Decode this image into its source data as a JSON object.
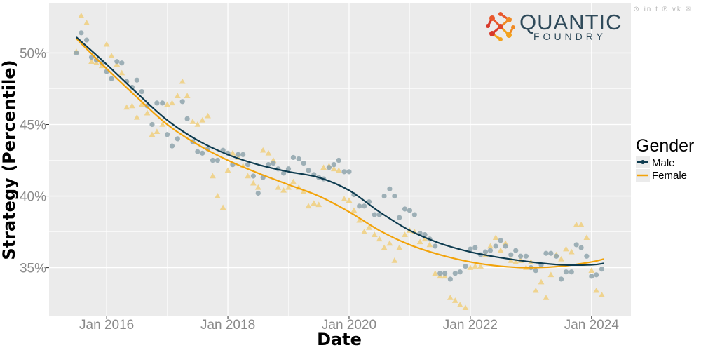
{
  "share_icons": "f 𝕏 ⊙ in t ℗ vk ✉",
  "brand": {
    "name": "QUANTIC",
    "sub": "FOUNDRY"
  },
  "colors": {
    "male": "#0d3b4f",
    "female": "#f2a30a",
    "male_points": "#8fa4ad",
    "female_points": "#f0cf7e",
    "panel": "#ebebeb",
    "grid": "#ffffff"
  },
  "chart_data": {
    "type": "scatter",
    "title": "",
    "xlabel": "Date",
    "ylabel": "Strategy (Percentile)",
    "xlim": [
      2015.05,
      2024.65
    ],
    "ylim": [
      31.6,
      53.5
    ],
    "x_ticks": [
      {
        "value": 2016,
        "label": "Jan 2016"
      },
      {
        "value": 2018,
        "label": "Jan 2018"
      },
      {
        "value": 2020,
        "label": "Jan 2020"
      },
      {
        "value": 2022,
        "label": "Jan 2022"
      },
      {
        "value": 2024,
        "label": "Jan 2024"
      }
    ],
    "y_ticks": [
      {
        "value": 35,
        "label": "35%"
      },
      {
        "value": 40,
        "label": "40%"
      },
      {
        "value": 45,
        "label": "45%"
      },
      {
        "value": 50,
        "label": "50%"
      }
    ],
    "legend": {
      "title": "Gender",
      "position": "right"
    },
    "series": [
      {
        "name": "Male",
        "marker": "circle",
        "points": [
          [
            2015.5,
            50.0
          ],
          [
            2015.58,
            51.4
          ],
          [
            2015.67,
            50.9
          ],
          [
            2015.75,
            49.7
          ],
          [
            2015.83,
            49.5
          ],
          [
            2015.92,
            49.3
          ],
          [
            2016.0,
            48.7
          ],
          [
            2016.08,
            48.2
          ],
          [
            2016.17,
            49.4
          ],
          [
            2016.25,
            49.3
          ],
          [
            2016.33,
            48.0
          ],
          [
            2016.42,
            47.6
          ],
          [
            2016.5,
            48.1
          ],
          [
            2016.58,
            47.3
          ],
          [
            2016.67,
            46.3
          ],
          [
            2016.75,
            45.0
          ],
          [
            2016.83,
            46.5
          ],
          [
            2016.92,
            46.5
          ],
          [
            2017.0,
            44.3
          ],
          [
            2017.08,
            43.5
          ],
          [
            2017.17,
            44.0
          ],
          [
            2017.25,
            46.6
          ],
          [
            2017.33,
            45.4
          ],
          [
            2017.42,
            43.8
          ],
          [
            2017.5,
            43.1
          ],
          [
            2017.58,
            43.0
          ],
          [
            2017.67,
            43.3
          ],
          [
            2017.75,
            42.5
          ],
          [
            2017.83,
            42.5
          ],
          [
            2017.92,
            43.2
          ],
          [
            2018.0,
            43.0
          ],
          [
            2018.08,
            42.2
          ],
          [
            2018.17,
            42.9
          ],
          [
            2018.25,
            42.9
          ],
          [
            2018.33,
            42.2
          ],
          [
            2018.42,
            41.4
          ],
          [
            2018.5,
            40.2
          ],
          [
            2018.58,
            41.3
          ],
          [
            2018.67,
            42.2
          ],
          [
            2018.75,
            42.3
          ],
          [
            2018.83,
            41.9
          ],
          [
            2018.92,
            41.6
          ],
          [
            2019.0,
            41.9
          ],
          [
            2019.08,
            42.7
          ],
          [
            2019.17,
            42.6
          ],
          [
            2019.25,
            42.3
          ],
          [
            2019.33,
            41.8
          ],
          [
            2019.42,
            41.5
          ],
          [
            2019.5,
            41.3
          ],
          [
            2019.58,
            41.2
          ],
          [
            2019.67,
            42.0
          ],
          [
            2019.75,
            42.2
          ],
          [
            2019.83,
            42.5
          ],
          [
            2019.92,
            41.7
          ],
          [
            2020.0,
            41.7
          ],
          [
            2020.08,
            40.1
          ],
          [
            2020.17,
            39.3
          ],
          [
            2020.25,
            39.3
          ],
          [
            2020.33,
            39.6
          ],
          [
            2020.42,
            38.7
          ],
          [
            2020.5,
            38.7
          ],
          [
            2020.58,
            40.0
          ],
          [
            2020.67,
            40.5
          ],
          [
            2020.75,
            40.0
          ],
          [
            2020.83,
            38.5
          ],
          [
            2020.92,
            39.1
          ],
          [
            2021.0,
            39.0
          ],
          [
            2021.08,
            38.7
          ],
          [
            2021.17,
            37.4
          ],
          [
            2021.25,
            37.3
          ],
          [
            2021.33,
            37.0
          ],
          [
            2021.42,
            36.5
          ],
          [
            2021.5,
            34.6
          ],
          [
            2021.58,
            34.6
          ],
          [
            2021.67,
            34.2
          ],
          [
            2021.75,
            34.6
          ],
          [
            2021.83,
            34.7
          ],
          [
            2021.92,
            35.1
          ],
          [
            2022.0,
            36.3
          ],
          [
            2022.08,
            36.4
          ],
          [
            2022.17,
            35.9
          ],
          [
            2022.25,
            36.1
          ],
          [
            2022.33,
            36.2
          ],
          [
            2022.42,
            36.5
          ],
          [
            2022.5,
            36.9
          ],
          [
            2022.58,
            36.5
          ],
          [
            2022.67,
            35.9
          ],
          [
            2022.75,
            36.2
          ],
          [
            2022.83,
            35.8
          ],
          [
            2022.92,
            35.8
          ],
          [
            2023.0,
            35.0
          ],
          [
            2023.08,
            34.8
          ],
          [
            2023.17,
            35.2
          ],
          [
            2023.25,
            36.0
          ],
          [
            2023.33,
            36.0
          ],
          [
            2023.42,
            35.8
          ],
          [
            2023.5,
            34.2
          ],
          [
            2023.58,
            34.7
          ],
          [
            2023.67,
            34.7
          ],
          [
            2023.75,
            36.6
          ],
          [
            2023.83,
            36.4
          ],
          [
            2023.92,
            35.8
          ],
          [
            2024.0,
            34.4
          ],
          [
            2024.08,
            34.5
          ],
          [
            2024.17,
            34.9
          ]
        ],
        "trend": [
          [
            2015.5,
            51.1
          ],
          [
            2016.0,
            49.2
          ],
          [
            2016.5,
            47.2
          ],
          [
            2017.0,
            45.3
          ],
          [
            2017.5,
            43.9
          ],
          [
            2018.0,
            42.9
          ],
          [
            2018.5,
            42.2
          ],
          [
            2019.0,
            41.7
          ],
          [
            2019.5,
            41.3
          ],
          [
            2020.0,
            40.4
          ],
          [
            2020.5,
            38.9
          ],
          [
            2021.0,
            37.6
          ],
          [
            2021.5,
            36.7
          ],
          [
            2022.0,
            36.1
          ],
          [
            2022.5,
            35.7
          ],
          [
            2023.0,
            35.4
          ],
          [
            2023.5,
            35.2
          ],
          [
            2024.0,
            35.2
          ],
          [
            2024.2,
            35.3
          ]
        ]
      },
      {
        "name": "Female",
        "marker": "triangle",
        "points": [
          [
            2015.5,
            50.1
          ],
          [
            2015.58,
            52.6
          ],
          [
            2015.67,
            52.1
          ],
          [
            2015.75,
            49.4
          ],
          [
            2015.83,
            49.3
          ],
          [
            2015.92,
            49.1
          ],
          [
            2016.0,
            50.6
          ],
          [
            2016.08,
            49.8
          ],
          [
            2016.17,
            49.2
          ],
          [
            2016.25,
            48.6
          ],
          [
            2016.33,
            46.2
          ],
          [
            2016.42,
            46.3
          ],
          [
            2016.5,
            45.5
          ],
          [
            2016.58,
            46.4
          ],
          [
            2016.67,
            45.8
          ],
          [
            2016.75,
            44.3
          ],
          [
            2016.83,
            44.5
          ],
          [
            2016.92,
            45.0
          ],
          [
            2017.0,
            46.4
          ],
          [
            2017.08,
            46.5
          ],
          [
            2017.17,
            47.0
          ],
          [
            2017.25,
            48.0
          ],
          [
            2017.33,
            47.0
          ],
          [
            2017.42,
            45.2
          ],
          [
            2017.5,
            45.0
          ],
          [
            2017.58,
            45.3
          ],
          [
            2017.67,
            45.6
          ],
          [
            2017.75,
            41.4
          ],
          [
            2017.83,
            40.0
          ],
          [
            2017.92,
            39.2
          ],
          [
            2018.0,
            41.8
          ],
          [
            2018.08,
            43.0
          ],
          [
            2018.17,
            42.7
          ],
          [
            2018.25,
            42.1
          ],
          [
            2018.33,
            41.4
          ],
          [
            2018.42,
            40.9
          ],
          [
            2018.5,
            40.6
          ],
          [
            2018.58,
            43.2
          ],
          [
            2018.67,
            43.0
          ],
          [
            2018.75,
            42.5
          ],
          [
            2018.83,
            40.6
          ],
          [
            2018.92,
            40.4
          ],
          [
            2019.0,
            40.6
          ],
          [
            2019.08,
            41.0
          ],
          [
            2019.17,
            40.6
          ],
          [
            2019.25,
            40.3
          ],
          [
            2019.33,
            39.3
          ],
          [
            2019.42,
            39.5
          ],
          [
            2019.5,
            39.4
          ],
          [
            2019.58,
            42.0
          ],
          [
            2019.67,
            42.1
          ],
          [
            2019.75,
            41.9
          ],
          [
            2019.83,
            41.8
          ],
          [
            2019.92,
            39.8
          ],
          [
            2020.0,
            39.7
          ],
          [
            2020.08,
            39.0
          ],
          [
            2020.17,
            38.3
          ],
          [
            2020.25,
            37.5
          ],
          [
            2020.33,
            37.8
          ],
          [
            2020.42,
            37.3
          ],
          [
            2020.5,
            37.0
          ],
          [
            2020.58,
            36.4
          ],
          [
            2020.67,
            36.7
          ],
          [
            2020.75,
            35.5
          ],
          [
            2020.83,
            36.4
          ],
          [
            2020.92,
            37.3
          ],
          [
            2021.0,
            37.6
          ],
          [
            2021.08,
            37.5
          ],
          [
            2021.17,
            36.8
          ],
          [
            2021.25,
            37.0
          ],
          [
            2021.33,
            36.6
          ],
          [
            2021.42,
            34.6
          ],
          [
            2021.5,
            34.4
          ],
          [
            2021.58,
            34.4
          ],
          [
            2021.67,
            32.9
          ],
          [
            2021.75,
            32.7
          ],
          [
            2021.83,
            32.4
          ],
          [
            2021.92,
            32.2
          ],
          [
            2022.0,
            35.0
          ],
          [
            2022.08,
            35.1
          ],
          [
            2022.17,
            35.1
          ],
          [
            2022.25,
            35.9
          ],
          [
            2022.33,
            36.5
          ],
          [
            2022.42,
            37.1
          ],
          [
            2022.5,
            36.2
          ],
          [
            2022.58,
            36.7
          ],
          [
            2022.67,
            35.5
          ],
          [
            2022.75,
            35.4
          ],
          [
            2022.83,
            35.5
          ],
          [
            2022.92,
            35.0
          ],
          [
            2023.0,
            35.4
          ],
          [
            2023.08,
            33.4
          ],
          [
            2023.17,
            34.0
          ],
          [
            2023.25,
            32.9
          ],
          [
            2023.33,
            34.5
          ],
          [
            2023.42,
            35.9
          ],
          [
            2023.5,
            35.6
          ],
          [
            2023.58,
            36.3
          ],
          [
            2023.67,
            36.1
          ],
          [
            2023.75,
            38.0
          ],
          [
            2023.83,
            38.0
          ],
          [
            2023.92,
            37.1
          ],
          [
            2024.0,
            34.8
          ],
          [
            2024.08,
            33.4
          ],
          [
            2024.17,
            33.1
          ]
        ],
        "trend": [
          [
            2015.5,
            51.0
          ],
          [
            2016.0,
            48.9
          ],
          [
            2016.5,
            46.9
          ],
          [
            2017.0,
            45.0
          ],
          [
            2017.5,
            43.6
          ],
          [
            2018.0,
            42.5
          ],
          [
            2018.5,
            41.6
          ],
          [
            2019.0,
            40.8
          ],
          [
            2019.5,
            40.0
          ],
          [
            2020.0,
            38.9
          ],
          [
            2020.5,
            37.6
          ],
          [
            2021.0,
            36.6
          ],
          [
            2021.5,
            35.9
          ],
          [
            2022.0,
            35.4
          ],
          [
            2022.5,
            35.1
          ],
          [
            2023.0,
            35.0
          ],
          [
            2023.5,
            35.1
          ],
          [
            2024.0,
            35.4
          ],
          [
            2024.2,
            35.6
          ]
        ]
      }
    ]
  }
}
